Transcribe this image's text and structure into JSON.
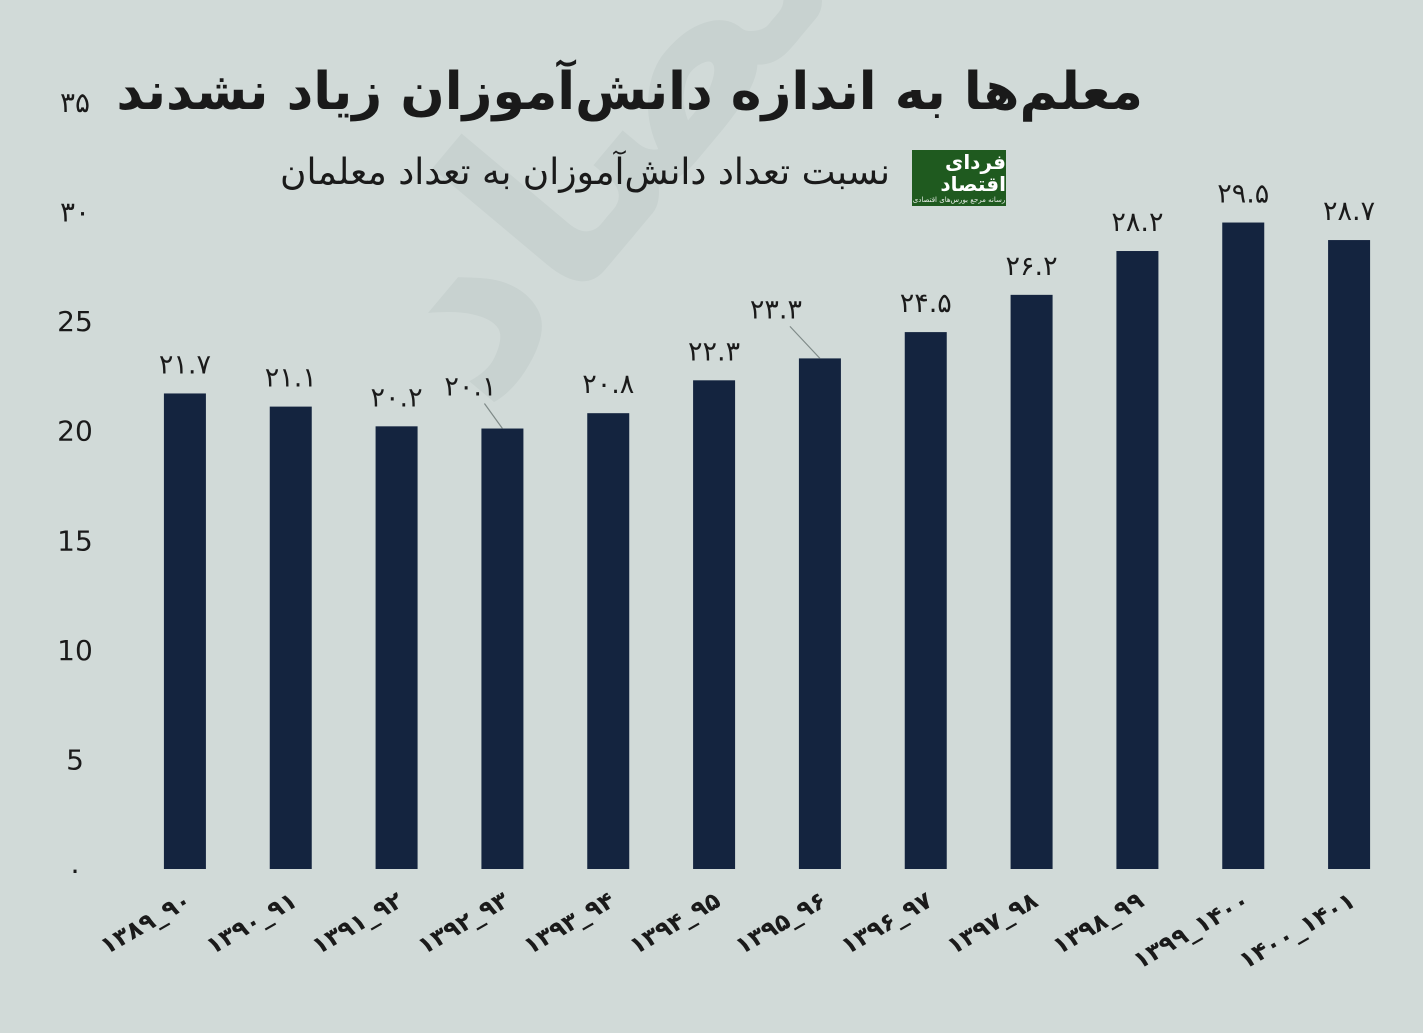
{
  "title": "معلم‌ها به اندازه دانش‌آموزان زیاد نشدند",
  "subtitle": "نسبت تعداد دانش‌آموزان به تعداد معلمان",
  "logo": {
    "main": "فردای اقتصاد",
    "sub": "رسانه مرجع بورس‌های اقتصادی"
  },
  "watermark": "فردای اقتصاد",
  "colors": {
    "background": "#d1dad8",
    "bar": "#14243f",
    "logo_bg": "#1f5a1f"
  },
  "chart_data": {
    "type": "bar",
    "title": "معلم‌ها به اندازه دانش‌آموزان زیاد نشدند",
    "subtitle": "نسبت تعداد دانش‌آموزان به تعداد معلمان",
    "xlabel": "",
    "ylabel": "",
    "ylim": [
      0,
      35
    ],
    "yticks": [
      0,
      5,
      10,
      15,
      20,
      25,
      30,
      35
    ],
    "ytick_labels": [
      "۰",
      "5",
      "10",
      "15",
      "20",
      "25",
      "۳۰",
      "۳۵"
    ],
    "grid": false,
    "categories": [
      "۱۳۸۹_۹۰",
      "۱۳۹۰_۹۱",
      "۱۳۹۱_۹۲",
      "۱۳۹۲_۹۳",
      "۱۳۹۳_۹۴",
      "۱۳۹۴_۹۵",
      "۱۳۹۵_۹۶",
      "۱۳۹۶_۹۷",
      "۱۳۹۷_۹۸",
      "۱۳۹۸_۹۹",
      "۱۳۹۹_۱۴۰۰",
      "۱۴۰۰_۱۴۰۱"
    ],
    "values": [
      21.7,
      21.1,
      20.2,
      20.1,
      20.8,
      22.3,
      23.3,
      24.5,
      26.2,
      28.2,
      29.5,
      28.7
    ],
    "value_labels": [
      "۲۱.۷",
      "۲۱.۱",
      "۲۰.۲",
      "۲۰.۱",
      "۲۰.۸",
      "۲۲.۳",
      "۲۳.۳",
      "۲۴.۵",
      "۲۶.۲",
      "۲۸.۲",
      "۲۹.۵",
      "۲۸.۷"
    ]
  }
}
